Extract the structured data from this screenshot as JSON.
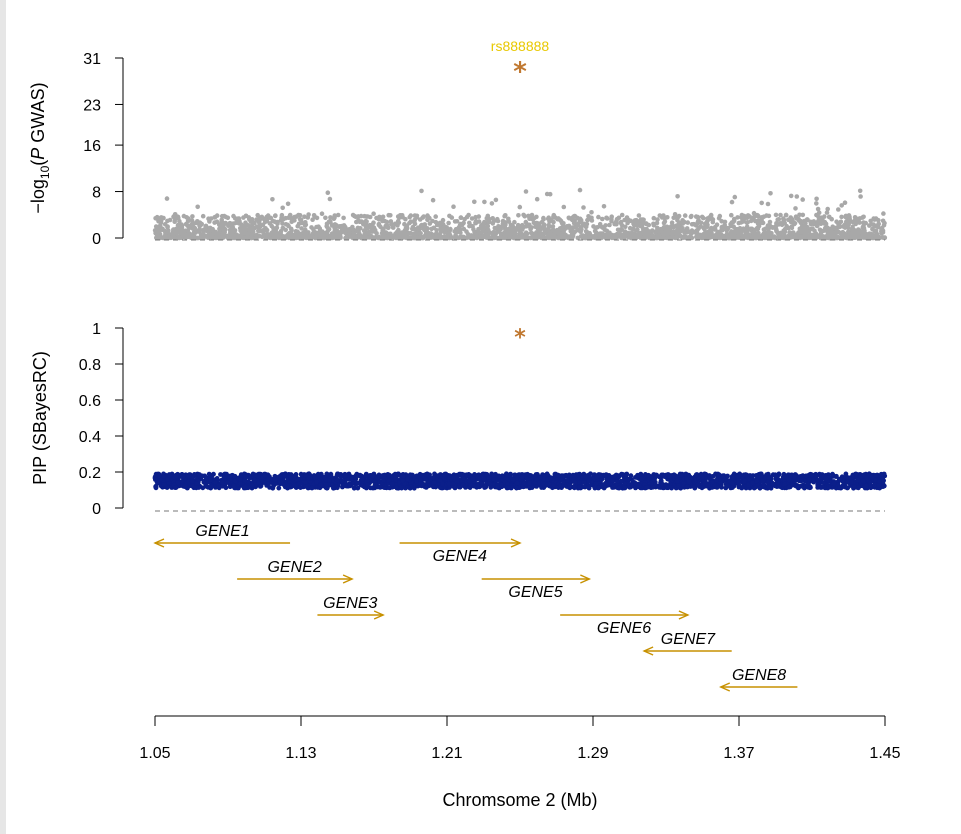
{
  "chart_data": [
    {
      "type": "scatter",
      "panel": "gwas",
      "ylabel_prefix": "−log",
      "ylabel_sub": "10",
      "ylabel_open": "(",
      "ylabel_italic": "P",
      "ylabel_suffix": " GWAS)",
      "ylim": [
        0,
        31
      ],
      "yticks": [
        0,
        8,
        16,
        23,
        31
      ],
      "xlim": [
        1.05,
        1.45
      ],
      "background_points": {
        "color": "#a8a8a8",
        "typical_max": 4,
        "peak_max": 8.3,
        "count": 2600
      },
      "lead_snp": {
        "id": "rs888888",
        "x": 1.25,
        "y": 29.8,
        "marker": "*",
        "color": "#c07830",
        "label_color": "#e8c800"
      },
      "baseline": 0
    },
    {
      "type": "scatter",
      "panel": "pip",
      "ylabel": "PIP (SBayesRC)",
      "ylim": [
        0,
        1
      ],
      "yticks": [
        0,
        0.2,
        0.4,
        0.6,
        0.8,
        1
      ],
      "ytick_labels": [
        "0",
        "0.2",
        "0.4",
        "0.6",
        "0.8",
        "1"
      ],
      "xlim": [
        1.05,
        1.45
      ],
      "background_points": {
        "color": "#0b1f8a",
        "ymin": 0.11,
        "ymax": 0.19,
        "count": 2600
      },
      "lead_snp": {
        "x": 1.25,
        "y": 0.98,
        "marker": "*",
        "color": "#c07830"
      },
      "baseline": 0
    }
  ],
  "genes": [
    {
      "name": "GENE1",
      "start": 1.05,
      "end": 1.124,
      "direction": "left",
      "row": 0
    },
    {
      "name": "GENE2",
      "start": 1.095,
      "end": 1.158,
      "direction": "right",
      "row": 1
    },
    {
      "name": "GENE3",
      "start": 1.139,
      "end": 1.175,
      "direction": "right",
      "row": 2
    },
    {
      "name": "GENE4",
      "start": 1.184,
      "end": 1.25,
      "direction": "right",
      "row": 0
    },
    {
      "name": "GENE5",
      "start": 1.229,
      "end": 1.288,
      "direction": "right",
      "row": 1
    },
    {
      "name": "GENE6",
      "start": 1.272,
      "end": 1.342,
      "direction": "right",
      "row": 2
    },
    {
      "name": "GENE7",
      "start": 1.318,
      "end": 1.366,
      "direction": "left",
      "row": 3
    },
    {
      "name": "GENE8",
      "start": 1.36,
      "end": 1.402,
      "direction": "left",
      "row": 4
    }
  ],
  "gene_color": "#c79100",
  "x_axis": {
    "ticks": [
      1.05,
      1.13,
      1.21,
      1.29,
      1.37,
      1.45
    ],
    "tick_labels": [
      "1.05",
      "1.13",
      "1.21",
      "1.29",
      "1.37",
      "1.45"
    ],
    "label": "Chromsome  2  (Mb)"
  }
}
